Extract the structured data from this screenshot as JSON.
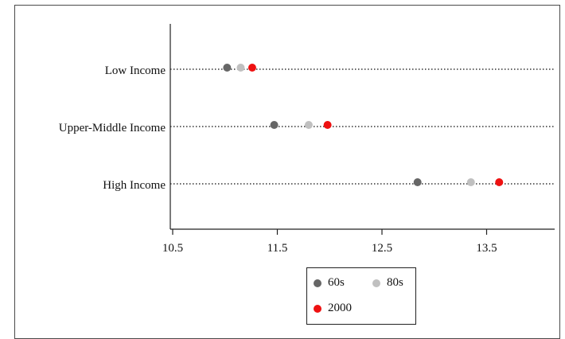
{
  "chart_data": {
    "type": "scatter",
    "title": "",
    "xlabel": "",
    "ylabel": "",
    "xlim": [
      10.5,
      13.9
    ],
    "x_ticks": [
      10.5,
      11.5,
      12.5,
      13.5
    ],
    "x_tick_labels": [
      "10.5",
      "11.5",
      "12.5",
      "13.5"
    ],
    "categories": [
      "Low Income",
      "Upper-Middle Income",
      "High Income"
    ],
    "series": [
      {
        "name": "60s",
        "color": "#666666",
        "values": [
          11.02,
          11.47,
          12.84
        ]
      },
      {
        "name": "80s",
        "color": "#c0c0c0",
        "values": [
          11.15,
          11.8,
          13.35
        ]
      },
      {
        "name": "2000",
        "color": "#ee1111",
        "values": [
          11.26,
          11.98,
          13.62
        ]
      }
    ],
    "grid": "dotted guide per category",
    "legend_placement": "bottom-center"
  }
}
